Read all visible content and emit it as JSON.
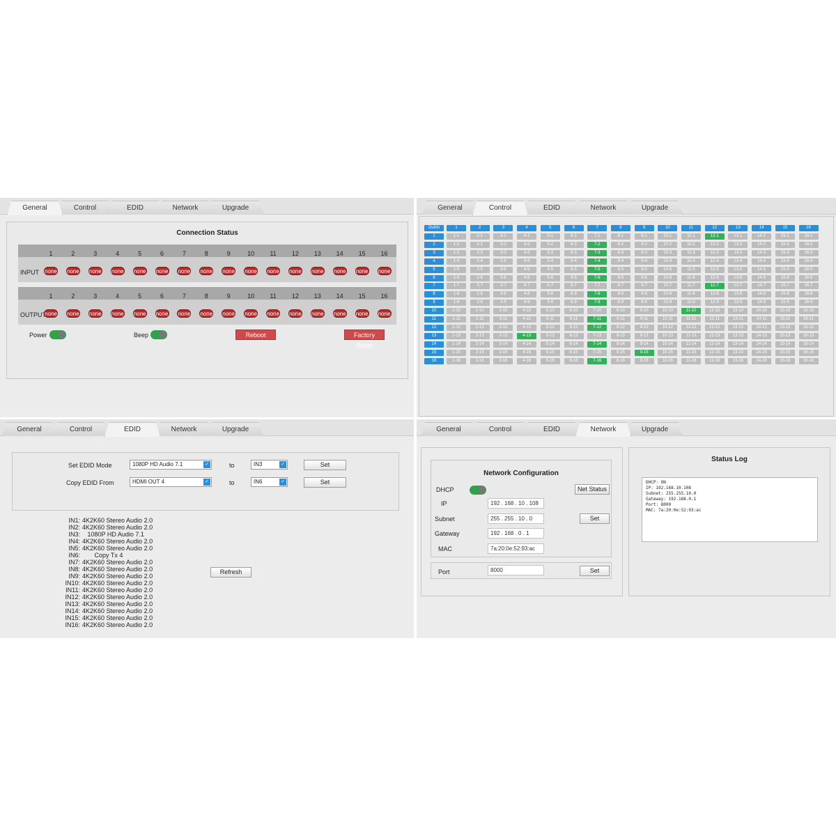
{
  "tabs": [
    "General",
    "Control",
    "EDID",
    "Network",
    "Upgrade"
  ],
  "general": {
    "title": "Connection Status",
    "ports": [
      "1",
      "2",
      "3",
      "4",
      "5",
      "6",
      "7",
      "8",
      "9",
      "10",
      "11",
      "12",
      "13",
      "14",
      "15",
      "16"
    ],
    "input_label": "INPUT",
    "output_label": "OUTPUT",
    "input_status": [
      "none",
      "none",
      "none",
      "none",
      "none",
      "none",
      "none",
      "none",
      "none",
      "none",
      "none",
      "none",
      "none",
      "none",
      "none",
      "none"
    ],
    "output_status": [
      "none",
      "none",
      "none",
      "none",
      "none",
      "none",
      "none",
      "none",
      "none",
      "none",
      "none",
      "none",
      "none",
      "none",
      "none",
      "none"
    ],
    "power_label": "Power",
    "beep_label": "Beep",
    "reboot_label": "Reboot",
    "factory_reset_label": "Factory Reset"
  },
  "control": {
    "corner_label": "Out\\In",
    "section_label": "control",
    "active_routes": [
      "12-1",
      "7-2",
      "7-3",
      "7-4",
      "7-5",
      "7-6",
      "12-7",
      "7-8",
      "7-9",
      "11-10",
      "7-11",
      "7-12",
      "4-13",
      "7-14",
      "9-15",
      "7-16"
    ]
  },
  "edid": {
    "set_mode_label": "Set EDID Mode",
    "set_mode_value": "1080P HD Audio 7.1",
    "copy_from_label": "Copy EDID From",
    "copy_from_value": "HDMI OUT 4",
    "to_label": "to",
    "target1": "IN3",
    "target2": "IN6",
    "set_label": "Set",
    "refresh_label": "Refresh",
    "list": [
      {
        "id": "IN1:",
        "value": "4K2K60 Stereo Audio 2.0"
      },
      {
        "id": "IN2:",
        "value": "4K2K60 Stereo Audio 2.0"
      },
      {
        "id": "IN3:",
        "value": "   1080P HD Audio 7.1"
      },
      {
        "id": "IN4:",
        "value": "4K2K60 Stereo Audio 2.0"
      },
      {
        "id": "IN5:",
        "value": "4K2K60 Stereo Audio 2.0"
      },
      {
        "id": "IN6:",
        "value": "       Copy Tx 4"
      },
      {
        "id": "IN7:",
        "value": "4K2K60 Stereo Audio 2.0"
      },
      {
        "id": "IN8:",
        "value": "4K2K60 Stereo Audio 2.0"
      },
      {
        "id": "IN9:",
        "value": "4K2K60 Stereo Audio 2.0"
      },
      {
        "id": "IN10:",
        "value": "4K2K60 Stereo Audio 2.0"
      },
      {
        "id": "IN11:",
        "value": "4K2K60 Stereo Audio 2.0"
      },
      {
        "id": "IN12:",
        "value": "4K2K60 Stereo Audio 2.0"
      },
      {
        "id": "IN13:",
        "value": "4K2K60 Stereo Audio 2.0"
      },
      {
        "id": "IN14:",
        "value": "4K2K60 Stereo Audio 2.0"
      },
      {
        "id": "IN15:",
        "value": "4K2K60 Stereo Audio 2.0"
      },
      {
        "id": "IN16:",
        "value": "4K2K60 Stereo Audio 2.0"
      }
    ]
  },
  "network": {
    "title": "Network Configuration",
    "dhcp_label": "DHCP",
    "net_status_label": "Net Status",
    "ip_label": "IP",
    "ip_value": "192 . 168 . 10 . 108",
    "subnet_label": "Subnet",
    "subnet_value": "255 . 255 . 10 . 0",
    "gateway_label": "Gateway",
    "gateway_value": "192 . 168 . 0 . 1",
    "mac_label": "MAC",
    "mac_value": "7a:20:0e:52:93:ac",
    "port_label": "Port",
    "port_value": "8000",
    "set_label": "Set",
    "log_title": "Status Log",
    "log_lines": [
      "DHCP: ON",
      "IP: 192.168.10.108",
      "Subnet: 255.255.10.0",
      "Gateway: 192.168.0.1",
      "Port: 8000",
      "MAC: 7a:20:0e:52:93:ac"
    ]
  },
  "colors": {
    "accent": "#2a8fd6",
    "active": "#35b05a",
    "danger": "#b52c2c",
    "toggle": "#2fa34a"
  }
}
